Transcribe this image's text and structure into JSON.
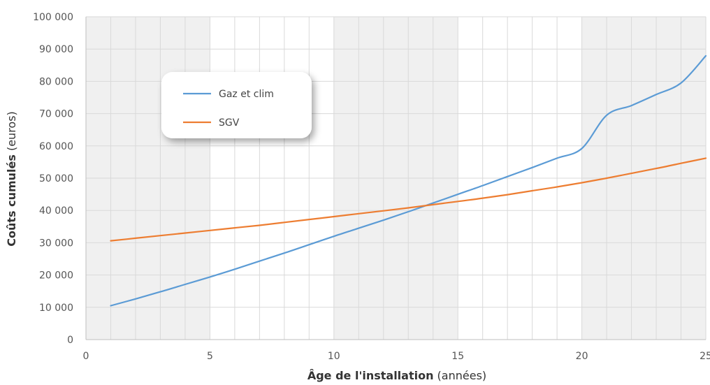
{
  "chart_data": {
    "type": "line",
    "xlabel_bold": "Âge de l'installation",
    "xlabel_rest": " (années)",
    "ylabel_bold": "Coûts cumulés",
    "ylabel_rest": " (euros)",
    "xlim": [
      0,
      25
    ],
    "ylim": [
      0,
      100000
    ],
    "x_ticks": [
      0,
      5,
      10,
      15,
      20,
      25
    ],
    "x_tick_labels": [
      "0",
      "5",
      "10",
      "15",
      "20",
      "25"
    ],
    "y_ticks": [
      0,
      10000,
      20000,
      30000,
      40000,
      50000,
      60000,
      70000,
      80000,
      90000,
      100000
    ],
    "y_tick_labels": [
      "0",
      "10 000",
      "20 000",
      "30 000",
      "40 000",
      "50 000",
      "60 000",
      "70 000",
      "80 000",
      "90 000",
      "100 000"
    ],
    "grid": true,
    "shaded_x_ranges": [
      [
        0,
        5
      ],
      [
        10,
        15
      ],
      [
        20,
        25
      ]
    ],
    "legend_position": "top-left",
    "series": [
      {
        "name": "Gaz et clim",
        "color": "#5b9bd5",
        "x": [
          1,
          2,
          3,
          4,
          5,
          6,
          7,
          8,
          9,
          10,
          11,
          12,
          13,
          14,
          15,
          16,
          17,
          18,
          19,
          20,
          21,
          22,
          23,
          24,
          25
        ],
        "y": [
          10500,
          12600,
          14800,
          17100,
          19400,
          21800,
          24300,
          26800,
          29400,
          32000,
          34500,
          37000,
          39600,
          42300,
          45000,
          47700,
          50500,
          53300,
          56200,
          59200,
          69500,
          72500,
          75900,
          79500,
          87900
        ]
      },
      {
        "name": "SGV",
        "color": "#ed7d31",
        "x": [
          1,
          2,
          3,
          4,
          5,
          6,
          7,
          8,
          9,
          10,
          11,
          12,
          13,
          14,
          15,
          16,
          17,
          18,
          19,
          20,
          21,
          22,
          23,
          24,
          25
        ],
        "y": [
          30600,
          31400,
          32200,
          33000,
          33800,
          34600,
          35400,
          36300,
          37200,
          38100,
          39000,
          39900,
          40800,
          41800,
          42800,
          43800,
          44900,
          46100,
          47300,
          48600,
          50000,
          51500,
          53000,
          54600,
          56200
        ]
      }
    ]
  }
}
